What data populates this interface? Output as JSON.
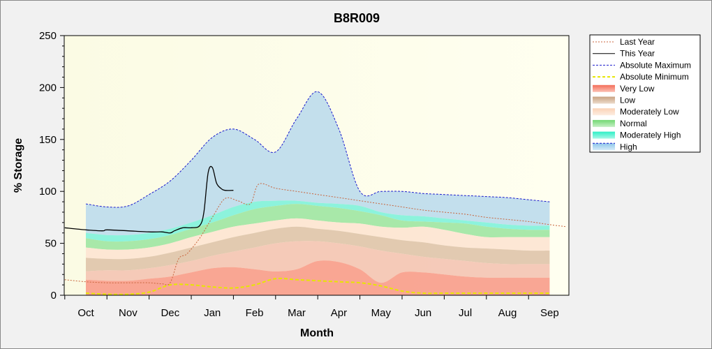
{
  "chart_data": {
    "type": "area",
    "title": "B8R009",
    "xlabel": "Month",
    "ylabel": "% Storage",
    "ylim": [
      0,
      250
    ],
    "y_ticks": [
      "0",
      "50",
      "100",
      "150",
      "200",
      "250"
    ],
    "categories": [
      "Oct",
      "Nov",
      "Dec",
      "Jan",
      "Feb",
      "Mar",
      "Apr",
      "May",
      "Jun",
      "Jul",
      "Aug",
      "Sep"
    ],
    "legend_position": "right",
    "legend": [
      {
        "label": "Last Year",
        "kind": "line",
        "color": "#c8643c",
        "dash": "2,2"
      },
      {
        "label": "This Year",
        "kind": "line",
        "color": "#000000",
        "dash": ""
      },
      {
        "label": "Absolute Maximum",
        "kind": "line",
        "color": "#1a1acc",
        "dash": "3,2"
      },
      {
        "label": "Absolute Minimum",
        "kind": "line",
        "color": "#e6e600",
        "dash": "4,3"
      },
      {
        "label": "Very Low",
        "kind": "band",
        "color": "#f88c78"
      },
      {
        "label": "Low",
        "kind": "band",
        "color": "#d8b496"
      },
      {
        "label": "Moderately Low",
        "kind": "band",
        "color": "#fbdcc4"
      },
      {
        "label": "Normal",
        "kind": "band",
        "color": "#8ee08e"
      },
      {
        "label": "Moderately High",
        "kind": "band",
        "color": "#5ef2d2"
      },
      {
        "label": "High",
        "kind": "band",
        "color": "#add8f0"
      }
    ],
    "x": [
      0,
      0.5,
      1,
      1.5,
      2,
      2.5,
      3,
      3.5,
      4,
      4.5,
      5,
      5.5,
      6,
      6.5,
      7,
      7.5,
      8,
      8.5,
      9,
      9.5,
      10,
      10.5,
      11
    ],
    "bands": {
      "very_low_top": [
        15,
        14,
        14,
        16,
        18,
        22,
        26,
        27,
        25,
        23,
        25,
        33,
        32,
        25,
        12,
        22,
        22,
        20,
        18,
        17,
        17,
        17,
        17
      ],
      "low_top": [
        23,
        24,
        24,
        26,
        29,
        33,
        38,
        42,
        46,
        50,
        52,
        52,
        50,
        47,
        43,
        40,
        37,
        35,
        33,
        31,
        30,
        30,
        30
      ],
      "moderately_low_top": [
        36,
        35,
        35,
        37,
        41,
        46,
        51,
        56,
        60,
        64,
        66,
        64,
        62,
        59,
        56,
        53,
        51,
        48,
        46,
        45,
        44,
        43,
        43
      ],
      "normal_top": [
        46,
        44,
        44,
        46,
        50,
        56,
        61,
        66,
        69,
        72,
        74,
        72,
        70,
        69,
        66,
        65,
        66,
        63,
        59,
        56,
        56,
        56,
        56
      ],
      "moderately_high_top": [
        55,
        52,
        52,
        54,
        58,
        64,
        70,
        77,
        83,
        86,
        88,
        86,
        84,
        81,
        77,
        72,
        71,
        70,
        69,
        66,
        64,
        63,
        63
      ],
      "high_top": [
        60,
        58,
        58,
        60,
        64,
        70,
        77,
        85,
        90,
        91,
        91,
        89,
        88,
        86,
        80,
        77,
        76,
        74,
        72,
        70,
        68,
        67,
        67
      ]
    },
    "absolute_maximum": [
      88,
      85,
      86,
      97,
      110,
      130,
      152,
      160,
      150,
      138,
      170,
      196,
      160,
      100,
      100,
      100,
      98,
      97,
      96,
      95,
      94,
      92,
      90
    ],
    "absolute_minimum": [
      2,
      1,
      1,
      3,
      10,
      10,
      8,
      7,
      10,
      16,
      15,
      14,
      13,
      12,
      9,
      4,
      2,
      2,
      2,
      2,
      2,
      2,
      2
    ],
    "last_year": {
      "x": [
        -0.5,
        0,
        0.5,
        1,
        1.5,
        1.8,
        2,
        2.2,
        2.4,
        2.7,
        3,
        3.3,
        3.6,
        3.9,
        4.1,
        4.5,
        5,
        5.5,
        6,
        6.5,
        7,
        7.5,
        8,
        8.5,
        9,
        9.5,
        10,
        10.5,
        11,
        11.4
      ],
      "y": [
        15,
        13,
        12,
        12,
        12,
        11,
        12,
        35,
        40,
        55,
        75,
        93,
        91,
        88,
        107,
        103,
        100,
        97,
        94,
        91,
        88,
        85,
        82,
        80,
        78,
        75,
        73,
        71,
        68,
        66
      ]
    },
    "this_year": {
      "x": [
        -0.5,
        0,
        0.4,
        0.5,
        1,
        1.5,
        1.8,
        2,
        2.1,
        2.3,
        2.5,
        2.7,
        2.8,
        2.9,
        3.0,
        3.1,
        3.2,
        3.3,
        3.5
      ],
      "y": [
        65,
        63,
        62,
        63,
        62,
        61,
        61,
        60,
        62,
        65,
        65,
        67,
        80,
        118,
        123,
        108,
        103,
        101,
        101
      ]
    }
  }
}
